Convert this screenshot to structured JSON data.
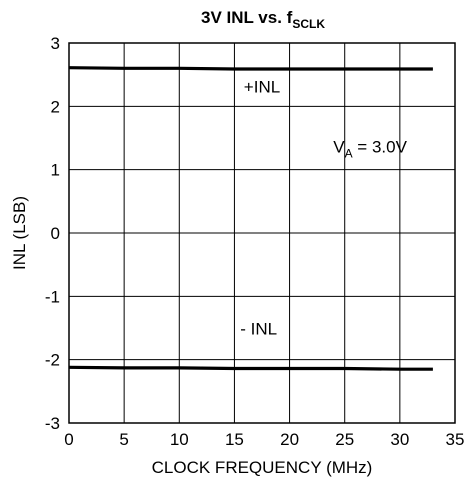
{
  "chart_data": {
    "type": "line",
    "title": {
      "main": "3V INL vs. f",
      "subscript": "SCLK"
    },
    "xlabel": "CLOCK FREQUENCY (MHz)",
    "ylabel": "INL (LSB)",
    "xlim": [
      0,
      35
    ],
    "ylim": [
      -3,
      3
    ],
    "x_ticks": [
      0,
      5,
      10,
      15,
      20,
      25,
      30,
      35
    ],
    "y_ticks": [
      -3,
      -2,
      -1,
      0,
      1,
      2,
      3
    ],
    "x_tick_labels": [
      "0",
      "5",
      "10",
      "15",
      "20",
      "25",
      "30",
      "35"
    ],
    "y_tick_labels": [
      "-3",
      "-2",
      "-1",
      "0",
      "1",
      "2",
      "3"
    ],
    "grid": true,
    "series": [
      {
        "name": "+INL",
        "color": "#000000",
        "x": [
          0,
          5,
          10,
          15,
          20,
          25,
          30,
          33
        ],
        "y": [
          2.61,
          2.6,
          2.6,
          2.59,
          2.59,
          2.59,
          2.59,
          2.59
        ]
      },
      {
        "name": "- INL",
        "color": "#000000",
        "x": [
          0,
          5,
          10,
          15,
          20,
          25,
          30,
          33
        ],
        "y": [
          -2.12,
          -2.13,
          -2.13,
          -2.14,
          -2.14,
          -2.14,
          -2.15,
          -2.15
        ]
      }
    ],
    "annotations": [
      {
        "key": "plus_inl",
        "text": "+INL",
        "x": 17.5,
        "y": 2.22
      },
      {
        "key": "minus_inl",
        "text": "- INL",
        "x": 17.2,
        "y": -1.6
      },
      {
        "key": "va",
        "text": "V",
        "subscript": "A",
        "rest": " = 3.0V",
        "x": 27.3,
        "y": 1.27
      }
    ]
  }
}
